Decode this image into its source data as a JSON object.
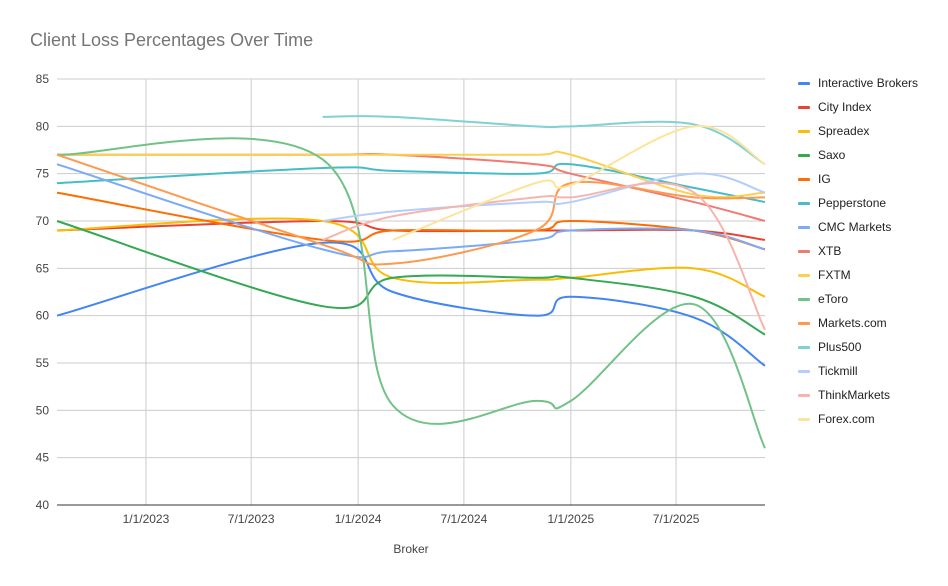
{
  "chart_data": {
    "type": "line",
    "title": "Client Loss Percentages Over Time",
    "xlabel": "Broker",
    "ylabel": "",
    "ylim": [
      40,
      85
    ],
    "yticks": [
      40,
      45,
      50,
      55,
      60,
      65,
      70,
      75,
      80,
      85
    ],
    "xlim": [
      "2022-08-01",
      "2025-12-01"
    ],
    "xticks": [
      "1/1/2023",
      "7/1/2023",
      "1/1/2024",
      "7/1/2024",
      "1/1/2025",
      "7/1/2025"
    ],
    "xtick_dates": [
      "2023-01-01",
      "2023-07-01",
      "2024-01-01",
      "2024-07-01",
      "2025-01-01",
      "2025-07-01"
    ],
    "grid": true,
    "legend": "right",
    "smooth": true,
    "x": [
      "2022-08-01",
      "2023-11-01",
      "2024-03-01",
      "2024-11-01",
      "2025-01-01",
      "2025-08-01",
      "2025-12-01"
    ],
    "series": [
      {
        "name": "Interactive Brokers",
        "color": "#4285f4",
        "values": [
          60,
          67.7,
          62.5,
          60,
          62,
          59.8,
          54.7
        ]
      },
      {
        "name": "City Index",
        "color": "#ea4335",
        "values": [
          69,
          70,
          69,
          69,
          69,
          69,
          68
        ]
      },
      {
        "name": "Spreadex",
        "color": "#fbbc04",
        "values": [
          69,
          70,
          64,
          63.8,
          64,
          65,
          62
        ]
      },
      {
        "name": "Saxo",
        "color": "#34a853",
        "values": [
          70,
          61,
          64,
          64,
          64,
          62,
          58
        ]
      },
      {
        "name": "IG",
        "color": "#ff6d01",
        "values": [
          73,
          68,
          69,
          69,
          70,
          69,
          67
        ]
      },
      {
        "name": "Pepperstone",
        "color": "#46bdc6",
        "values": [
          74,
          75.6,
          75.3,
          75,
          76,
          73.5,
          72
        ]
      },
      {
        "name": "CMC Markets",
        "color": "#7baaf7",
        "values": [
          76,
          67,
          66.8,
          68,
          69,
          69,
          67
        ]
      },
      {
        "name": "XTB",
        "color": "#f07b72",
        "values": [
          77,
          77,
          77,
          76,
          75,
          72,
          70
        ]
      },
      {
        "name": "FXTM",
        "color": "#fcd04f",
        "values": [
          77,
          77,
          77,
          77,
          77,
          72.8,
          73
        ]
      },
      {
        "name": "eToro",
        "color": "#71c287",
        "values": [
          77,
          76.5,
          50.5,
          51,
          51,
          61.2,
          46
        ]
      },
      {
        "name": "Markets.com",
        "color": "#ff994d",
        "values": [
          77,
          67.5,
          65.5,
          69,
          74,
          72.5,
          72.5
        ]
      },
      {
        "name": "Plus500",
        "color": "#7ed1d7",
        "values": [
          null,
          81,
          81,
          80,
          80,
          80.2,
          76
        ]
      },
      {
        "name": "Tickmill",
        "color": "#b3cefb",
        "values": [
          null,
          70,
          71,
          72,
          72,
          75,
          73
        ]
      },
      {
        "name": "ThinkMarkets",
        "color": "#f7b4ae",
        "values": [
          null,
          68,
          70.5,
          72.5,
          72.5,
          73,
          58.5
        ]
      },
      {
        "name": "Forex.com",
        "color": "#fde49b",
        "values": [
          null,
          null,
          68,
          74,
          73.8,
          80,
          76
        ]
      }
    ]
  }
}
